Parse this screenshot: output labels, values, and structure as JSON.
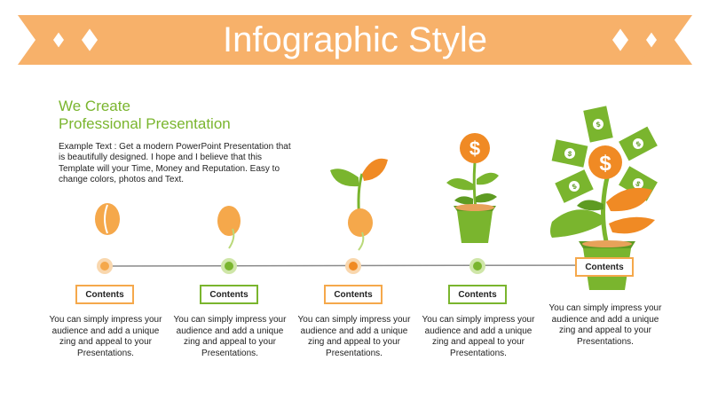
{
  "title": "Infographic Style",
  "intro": {
    "heading_line1": "We Create",
    "heading_line2": "Professional Presentation",
    "body": "Example Text : Get a modern PowerPoint  Presentation that is beautifully designed. I hope and I believe that this Template will your Time, Money and Reputation. Easy to change colors, photos and Text."
  },
  "colors": {
    "orange": "#f5a84b",
    "green": "#7ab52e",
    "banner": "#f7b16a",
    "dark_orange": "#f08a24"
  },
  "stages": [
    {
      "label": "Contents",
      "accent": "orange",
      "description": "You can simply impress your audience and add a unique zing and appeal to your Presentations."
    },
    {
      "label": "Contents",
      "accent": "green",
      "description": "You can simply impress your audience and add a unique zing and appeal to your Presentations."
    },
    {
      "label": "Contents",
      "accent": "orange",
      "description": "You can simply impress your audience and add a unique zing and appeal to your Presentations."
    },
    {
      "label": "Contents",
      "accent": "green",
      "description": "You can simply impress your audience and add a unique zing and appeal to your Presentations."
    },
    {
      "label": "Contents",
      "accent": "orange",
      "description": "You can simply impress your audience and add a unique zing and appeal to your Presentations."
    }
  ],
  "icons": [
    "seed-icon",
    "sprouting-seed-icon",
    "seedling-icon",
    "potted-money-plant-icon",
    "money-tree-icon",
    "dollar-coin-icon",
    "banknote-icon"
  ]
}
